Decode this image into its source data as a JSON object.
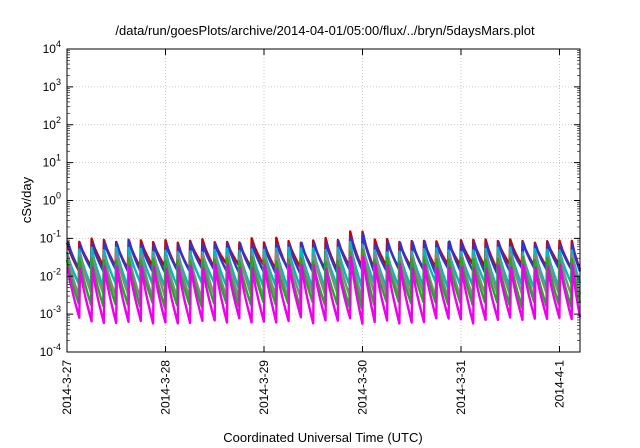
{
  "chart_data": {
    "type": "line",
    "title": "/data/run/goesPlots/archive/2014-04-01/05:00/flux/../bryn/5daysMars.plot",
    "xlabel": "Coordinated Universal Time (UTC)",
    "ylabel": "cSv/day",
    "y_scale": "log",
    "ylim": [
      0.0001,
      10000
    ],
    "xlim": [
      "2014-03-27 00:00",
      "2014-04-01 05:00"
    ],
    "grid": true,
    "legend": "none",
    "y_ticks": [
      {
        "value": 0.0001,
        "base": "10",
        "exp": "-4"
      },
      {
        "value": 0.001,
        "base": "10",
        "exp": "-3"
      },
      {
        "value": 0.01,
        "base": "10",
        "exp": "-2"
      },
      {
        "value": 0.1,
        "base": "10",
        "exp": "-1"
      },
      {
        "value": 1,
        "base": "10",
        "exp": "0"
      },
      {
        "value": 10,
        "base": "10",
        "exp": "1"
      },
      {
        "value": 100,
        "base": "10",
        "exp": "2"
      },
      {
        "value": 1000,
        "base": "10",
        "exp": "3"
      },
      {
        "value": 10000,
        "base": "10",
        "exp": "4"
      }
    ],
    "x_ticks": [
      {
        "value": "2014-03-27 00:00",
        "label": "2014-3-27"
      },
      {
        "value": "2014-03-28 00:00",
        "label": "2014-3-28"
      },
      {
        "value": "2014-03-29 00:00",
        "label": "2014-3-29"
      },
      {
        "value": "2014-03-30 00:00",
        "label": "2014-3-30"
      },
      {
        "value": "2014-03-31 00:00",
        "label": "2014-3-31"
      },
      {
        "value": "2014-04-01 00:00",
        "label": "2014-4-1"
      }
    ],
    "series": [
      {
        "color": "#cc0000",
        "peak": 0.09,
        "trough": 0.018,
        "spike": 0.15
      },
      {
        "color": "#3333cc",
        "peak": 0.075,
        "trough": 0.013,
        "spike": 0.12
      },
      {
        "color": "#00bbbb",
        "peak": 0.05,
        "trough": 0.006,
        "spike": 0.08
      },
      {
        "color": "#888888",
        "peak": 0.035,
        "trough": 0.0028,
        "spike": 0.055
      },
      {
        "color": "#22aa22",
        "peak": 0.028,
        "trough": 0.0018,
        "spike": 0.045
      },
      {
        "color": "#ee00ee",
        "peak": 0.018,
        "trough": 0.0007,
        "spike": 0.03
      }
    ],
    "cycle_hours": 3
  }
}
